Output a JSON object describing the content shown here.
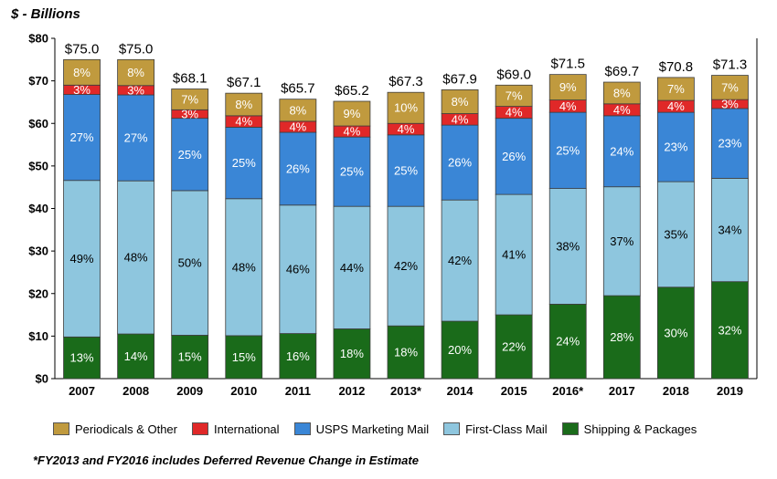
{
  "chart_data": {
    "type": "bar",
    "stacked": true,
    "title": "$ - Billions",
    "categories": [
      "2007",
      "2008",
      "2009",
      "2010",
      "2011",
      "2012",
      "2013*",
      "2014",
      "2015",
      "2016*",
      "2017",
      "2018",
      "2019"
    ],
    "totals": [
      "$75.0",
      "$75.0",
      "$68.1",
      "$67.1",
      "$65.7",
      "$65.2",
      "$67.3",
      "$67.9",
      "$69.0",
      "$71.5",
      "$69.7",
      "$70.8",
      "$71.3"
    ],
    "total_values": [
      75.0,
      75.0,
      68.1,
      67.1,
      65.7,
      65.2,
      67.3,
      67.9,
      69.0,
      71.5,
      69.7,
      70.8,
      71.3
    ],
    "ylim": [
      0,
      80
    ],
    "yticks": [
      0,
      10,
      20,
      30,
      40,
      50,
      60,
      70,
      80
    ],
    "ytick_labels": [
      "$0",
      "$10",
      "$20",
      "$30",
      "$40",
      "$50",
      "$60",
      "$70",
      "$80"
    ],
    "grid": false,
    "legend_position": "bottom",
    "series": [
      {
        "name": "Shipping & Packages",
        "color": "#1a6b1a",
        "label_color": "#ffffff",
        "values": [
          9.8,
          10.5,
          10.2,
          10.1,
          10.6,
          11.7,
          12.4,
          13.5,
          15.0,
          17.5,
          19.5,
          21.5,
          22.8
        ],
        "labels": [
          "13%",
          "14%",
          "15%",
          "15%",
          "16%",
          "18%",
          "18%",
          "20%",
          "22%",
          "24%",
          "28%",
          "30%",
          "32%"
        ]
      },
      {
        "name": "First-Class Mail",
        "color": "#8ec6de",
        "label_color": "#000000",
        "values": [
          36.8,
          36.0,
          34.0,
          32.2,
          30.2,
          28.8,
          28.1,
          28.5,
          28.3,
          27.2,
          25.6,
          24.8,
          24.3
        ],
        "labels": [
          "49%",
          "48%",
          "50%",
          "48%",
          "46%",
          "44%",
          "42%",
          "42%",
          "41%",
          "38%",
          "37%",
          "35%",
          "34%"
        ]
      },
      {
        "name": "USPS Marketing Mail",
        "color": "#3a86d6",
        "label_color": "#ffffff",
        "values": [
          20.2,
          20.2,
          17.0,
          16.8,
          17.1,
          16.3,
          16.8,
          17.6,
          17.9,
          17.9,
          16.7,
          16.3,
          16.4
        ],
        "labels": [
          "27%",
          "27%",
          "25%",
          "25%",
          "26%",
          "25%",
          "25%",
          "26%",
          "26%",
          "25%",
          "24%",
          "23%",
          "23%"
        ]
      },
      {
        "name": "International",
        "color": "#e02828",
        "label_color": "#ffffff",
        "values": [
          2.2,
          2.2,
          2.0,
          2.7,
          2.6,
          2.6,
          2.7,
          2.7,
          2.8,
          2.9,
          2.8,
          2.8,
          2.1
        ],
        "labels": [
          "3%",
          "3%",
          "3%",
          "4%",
          "4%",
          "4%",
          "4%",
          "4%",
          "4%",
          "4%",
          "4%",
          "4%",
          "3%"
        ]
      },
      {
        "name": "Periodicals & Other",
        "color": "#c09a3e",
        "label_color": "#ffffff",
        "values": [
          6.0,
          6.1,
          4.9,
          5.3,
          5.2,
          5.8,
          7.3,
          5.6,
          5.0,
          6.0,
          5.1,
          5.4,
          5.7
        ],
        "labels": [
          "8%",
          "8%",
          "7%",
          "8%",
          "8%",
          "9%",
          "10%",
          "8%",
          "7%",
          "9%",
          "8%",
          "7%",
          "7%"
        ]
      }
    ],
    "footnote": "*FY2013 and FY2016 includes Deferred Revenue Change in Estimate"
  }
}
